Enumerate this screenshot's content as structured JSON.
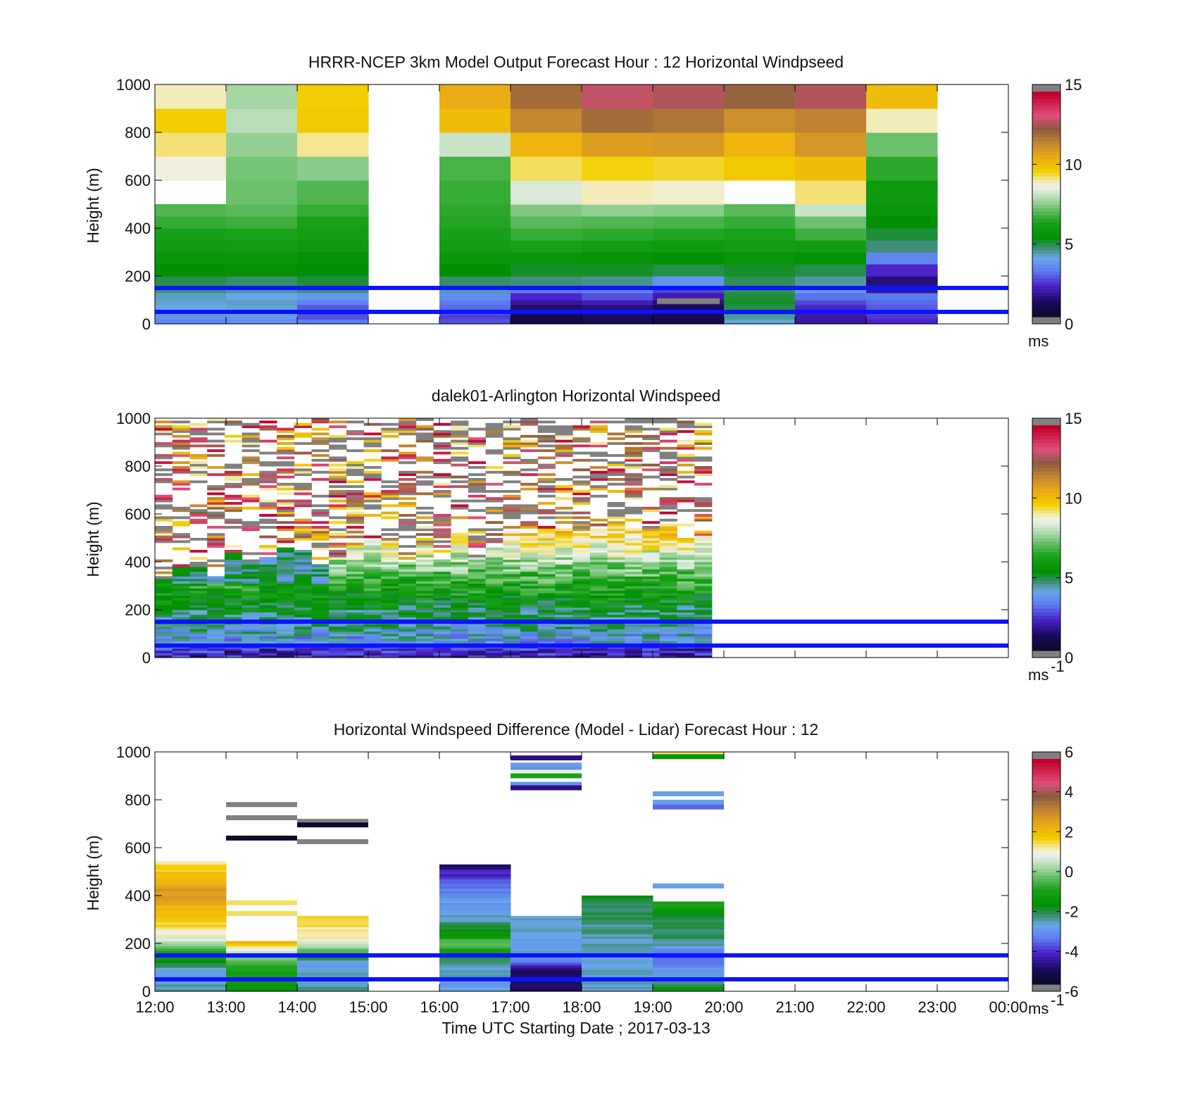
{
  "figure": {
    "x_ticks": [
      "12:00",
      "13:00",
      "14:00",
      "15:00",
      "16:00",
      "17:00",
      "18:00",
      "19:00",
      "20:00",
      "21:00",
      "22:00",
      "23:00",
      "00:00"
    ],
    "x_label": "Time UTC  Starting Date ; 2017-03-13",
    "reference_lines_m": [
      150,
      50
    ],
    "reference_line_color": "#0a14ff"
  },
  "chart_data": [
    {
      "type": "heatmap",
      "title": "HRRR-NCEP 3km Model Output   Forecast Hour : 12 Horizontal Windpseed",
      "ylabel": "Height (m)",
      "ylim": [
        0,
        1000
      ],
      "yticks": [
        "0",
        "200",
        "400",
        "600",
        "800",
        "1000"
      ],
      "colorbar": {
        "ticks": [
          "0",
          "5",
          "10",
          "15"
        ],
        "unit": "ms",
        "unit_sup": "",
        "range": [
          0,
          15
        ],
        "min_value": 0,
        "max_value": 15
      },
      "time_bins_hours": [
        12,
        13,
        14,
        15,
        16,
        17,
        18,
        19,
        20,
        21,
        22,
        23
      ],
      "height_edges_m": [
        0,
        20,
        40,
        60,
        80,
        100,
        130,
        160,
        200,
        250,
        300,
        350,
        400,
        450,
        500,
        600,
        700,
        800,
        900,
        1000
      ],
      "windspeed_ms": [
        [
          3.2,
          3.4,
          3.0,
          null,
          2.5,
          0.5,
          0.8,
          0.6,
          4.0,
          1.5,
          2.0,
          null
        ],
        [
          3.5,
          3.6,
          2.5,
          null,
          2.3,
          0.6,
          0.9,
          0.8,
          4.3,
          1.6,
          2.2,
          null
        ],
        [
          3.8,
          3.8,
          2.2,
          null,
          2.6,
          0.7,
          1.0,
          0.0,
          4.6,
          1.8,
          2.4,
          null
        ],
        [
          3.9,
          4.0,
          2.6,
          null,
          2.8,
          1.0,
          1.2,
          0.9,
          4.8,
          2.0,
          2.6,
          null
        ],
        [
          4.0,
          4.1,
          3.1,
          null,
          3.0,
          1.5,
          1.8,
          1.2,
          5.0,
          2.4,
          2.8,
          null
        ],
        [
          4.1,
          3.9,
          3.6,
          null,
          3.4,
          2.0,
          2.5,
          1.7,
          4.9,
          2.9,
          3.0,
          null
        ],
        [
          4.5,
          4.3,
          4.5,
          null,
          4.2,
          3.0,
          3.2,
          2.4,
          4.7,
          3.6,
          1.5,
          null
        ],
        [
          4.8,
          4.6,
          4.9,
          null,
          4.6,
          4.5,
          4.4,
          3.5,
          4.7,
          4.3,
          1.2,
          null
        ],
        [
          5.3,
          5.4,
          5.2,
          null,
          5.3,
          5.0,
          5.0,
          4.8,
          5.0,
          4.8,
          2.0,
          null
        ],
        [
          5.6,
          5.7,
          5.4,
          null,
          5.7,
          5.6,
          5.5,
          5.3,
          5.6,
          5.4,
          3.2,
          null
        ],
        [
          5.9,
          6.0,
          5.8,
          null,
          6.0,
          6.2,
          6.0,
          5.9,
          6.1,
          6.0,
          4.5,
          null
        ],
        [
          6.2,
          6.3,
          6.0,
          null,
          6.2,
          6.6,
          6.5,
          6.4,
          6.3,
          6.7,
          4.9,
          null
        ],
        [
          6.6,
          6.7,
          6.2,
          null,
          6.4,
          7.0,
          6.9,
          6.8,
          6.6,
          7.2,
          5.2,
          null
        ],
        [
          6.9,
          7.0,
          6.6,
          null,
          6.5,
          7.4,
          7.6,
          7.5,
          7.0,
          8.2,
          5.6,
          null
        ],
        [
          null,
          7.2,
          6.9,
          null,
          6.6,
          8.4,
          9.0,
          8.9,
          null,
          9.3,
          5.8,
          null
        ],
        [
          8.8,
          7.3,
          7.5,
          null,
          6.8,
          9.4,
          9.7,
          9.6,
          9.9,
          10.2,
          6.5,
          null
        ],
        [
          9.3,
          7.6,
          9.2,
          null,
          8.2,
          10.4,
          11.0,
          11.1,
          10.4,
          11.2,
          7.2,
          null
        ],
        [
          9.8,
          8.0,
          9.9,
          null,
          10.2,
          11.6,
          12.2,
          12.0,
          11.4,
          11.7,
          9.0,
          null
        ],
        [
          9.0,
          7.8,
          9.8,
          null,
          10.6,
          12.2,
          13.2,
          13.0,
          12.4,
          13.0,
          10.2,
          null
        ]
      ],
      "missing_marks": [
        {
          "hour_start": 19,
          "hour_end": 20,
          "height_m": 95,
          "color": "#808080"
        }
      ]
    },
    {
      "type": "heatmap",
      "title": "dalek01-Arlington  Horizontal Windspeed",
      "ylabel": "Height (m)",
      "ylim": [
        0,
        1000
      ],
      "yticks": [
        "0",
        "200",
        "400",
        "600",
        "800",
        "1000"
      ],
      "colorbar": {
        "ticks": [
          "0",
          "5",
          "10",
          "15"
        ],
        "unit": "ms",
        "unit_sup": "-1",
        "range": [
          0,
          15
        ],
        "min_value": 0,
        "max_value": 15
      },
      "time_range_hours": [
        12.0,
        19.83
      ],
      "columns": 32,
      "profile_speed_ms": [
        {
          "h": 20,
          "v": 2.0
        },
        {
          "h": 60,
          "v": 3.5
        },
        {
          "h": 120,
          "v": 4.2
        },
        {
          "h": 200,
          "v": 5.0
        },
        {
          "h": 280,
          "v": 6.0
        },
        {
          "h": 380,
          "v": 7.5
        },
        {
          "h": 500,
          "v": 9.5
        },
        {
          "h": 650,
          "v": 11.5
        },
        {
          "h": 850,
          "v": 12.5
        },
        {
          "h": 1000,
          "v": 13.0
        }
      ],
      "profile_speed_note": "",
      "note": ""
    },
    {
      "type": "heatmap",
      "title": "Horizontal Windspeed Difference (Model - Lidar) Forecast Hour : 12",
      "ylabel": "Height (m)",
      "ylim": [
        0,
        1000
      ],
      "yticks": [
        "0",
        "200",
        "400",
        "600",
        "800",
        "1000"
      ],
      "colorbar": {
        "ticks": [
          "-6",
          "-4",
          "-2",
          "0",
          "2",
          "4",
          "6"
        ],
        "unit": "ms",
        "unit_sup": "-1",
        "range": [
          -6,
          6
        ],
        "min_value": -6,
        "max_value": 6
      },
      "blocks": [
        {
          "hour": 12,
          "top_m": 545,
          "profile": [
            [
              0,
              -2.5
            ],
            [
              80,
              -3.0
            ],
            [
              160,
              -1.0
            ],
            [
              220,
              0.8
            ],
            [
              300,
              2.0
            ],
            [
              420,
              2.8
            ],
            [
              545,
              1.5
            ]
          ]
        },
        {
          "hour": 13,
          "top_m": 210,
          "profile": [
            [
              0,
              -1.5
            ],
            [
              100,
              -1.0
            ],
            [
              150,
              0.0
            ],
            [
              210,
              2.5
            ]
          ]
        },
        {
          "hour": 14,
          "top_m": 315,
          "profile": [
            [
              0,
              -2.5
            ],
            [
              120,
              -3.0
            ],
            [
              170,
              -0.5
            ],
            [
              220,
              1.2
            ],
            [
              315,
              1.6
            ]
          ]
        },
        {
          "hour": 16,
          "top_m": 530,
          "profile": [
            [
              0,
              -3.0
            ],
            [
              100,
              -2.8
            ],
            [
              200,
              -0.5
            ],
            [
              300,
              -2.8
            ],
            [
              420,
              -3.5
            ],
            [
              530,
              -5.0
            ]
          ]
        },
        {
          "hour": 17,
          "top_m": 315,
          "profile": [
            [
              0,
              -5.2
            ],
            [
              100,
              -5.0
            ],
            [
              140,
              -3.0
            ],
            [
              315,
              -2.6
            ]
          ]
        },
        {
          "hour": 18,
          "top_m": 400,
          "profile": [
            [
              0,
              -2.8
            ],
            [
              200,
              -2.7
            ],
            [
              400,
              -2.0
            ]
          ]
        },
        {
          "hour": 19,
          "top_m": 375,
          "profile": [
            [
              0,
              -1.5
            ],
            [
              100,
              -3.5
            ],
            [
              150,
              -4.0
            ],
            [
              200,
              -2.5
            ],
            [
              300,
              -2.0
            ],
            [
              375,
              -1.0
            ]
          ]
        }
      ],
      "sparse_marks": [
        {
          "hour": 13,
          "h": 780,
          "v": 6.5
        },
        {
          "hour": 13,
          "h": 725,
          "v": 6.5
        },
        {
          "hour": 13,
          "h": 640,
          "v": -6.0
        },
        {
          "hour": 13,
          "h": 370,
          "v": 1.5
        },
        {
          "hour": 13,
          "h": 325,
          "v": 1.5
        },
        {
          "hour": 14,
          "h": 710,
          "v": 6.5
        },
        {
          "hour": 14,
          "h": 695,
          "v": -6.0
        },
        {
          "hour": 14,
          "h": 625,
          "v": 6.5
        },
        {
          "hour": 17,
          "h": 975,
          "v": -5.0
        },
        {
          "hour": 17,
          "h": 945,
          "v": -3.0
        },
        {
          "hour": 17,
          "h": 930,
          "v": -3.2
        },
        {
          "hour": 17,
          "h": 915,
          "v": 1.0
        },
        {
          "hour": 17,
          "h": 900,
          "v": -1.0
        },
        {
          "hour": 17,
          "h": 865,
          "v": -3.2
        },
        {
          "hour": 17,
          "h": 850,
          "v": -5.0
        },
        {
          "hour": 19,
          "h": 990,
          "v": 1.5
        },
        {
          "hour": 19,
          "h": 980,
          "v": -1.5
        },
        {
          "hour": 19,
          "h": 825,
          "v": -3.0
        },
        {
          "hour": 19,
          "h": 790,
          "v": -3.0
        },
        {
          "hour": 19,
          "h": 770,
          "v": -3.8
        },
        {
          "hour": 19,
          "h": 440,
          "v": -3.0
        }
      ]
    }
  ]
}
